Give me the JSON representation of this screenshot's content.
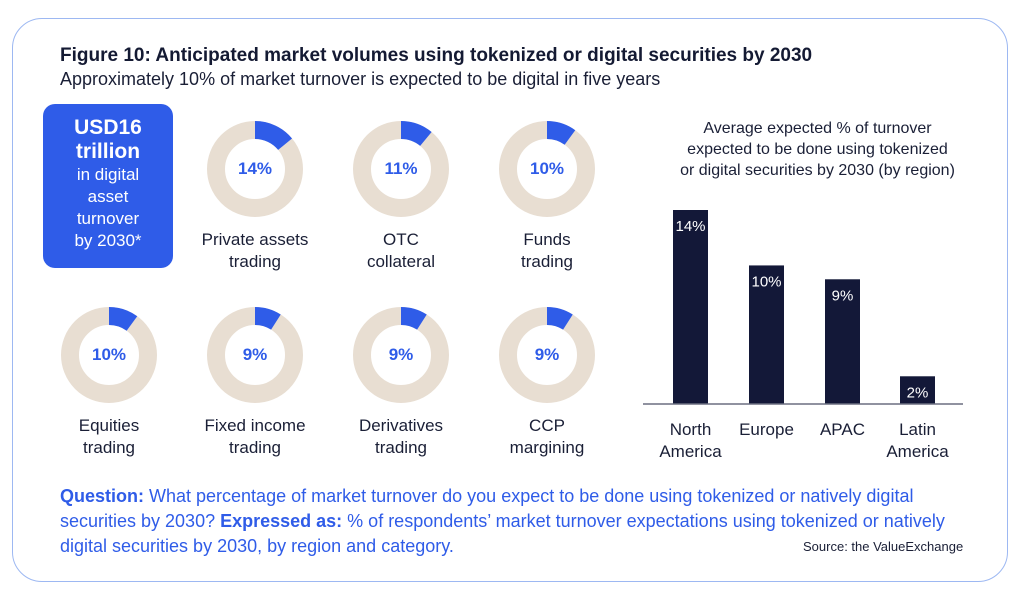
{
  "title": "Figure 10: Anticipated market volumes using tokenized or digital securities by 2030",
  "subtitle": "Approximately 10% of market turnover is expected to be digital in five years",
  "highlight": {
    "line1": "USD16",
    "line2": "trillion",
    "line3": "in digital",
    "line4": "asset",
    "line5": "turnover",
    "line6": "by 2030*"
  },
  "donuts": [
    {
      "value": 14,
      "label": "14%",
      "line1": "Private assets",
      "line2": "trading"
    },
    {
      "value": 11,
      "label": "11%",
      "line1": "OTC",
      "line2": "collateral"
    },
    {
      "value": 10,
      "label": "10%",
      "line1": "Funds",
      "line2": "trading"
    },
    {
      "value": 10,
      "label": "10%",
      "line1": "Equities",
      "line2": "trading"
    },
    {
      "value": 9,
      "label": "9%",
      "line1": "Fixed income",
      "line2": "trading"
    },
    {
      "value": 9,
      "label": "9%",
      "line1": "Derivatives",
      "line2": "trading"
    },
    {
      "value": 9,
      "label": "9%",
      "line1": "CCP",
      "line2": "margining"
    }
  ],
  "colors": {
    "accent": "#2f5ce8",
    "donut_track": "#e8ded2",
    "bar": "#131838",
    "border": "#9db8f2"
  },
  "chart_data": {
    "type": "bar",
    "title_lines": [
      "Average expected % of turnover",
      "expected to be done using tokenized",
      "or digital securities by 2030 (by region)"
    ],
    "categories": [
      [
        "North",
        "America"
      ],
      [
        "Europe"
      ],
      [
        "APAC"
      ],
      [
        "Latin",
        "America"
      ]
    ],
    "values": [
      14,
      10,
      9,
      2
    ],
    "data_labels": [
      "14%",
      "10%",
      "9%",
      "2%"
    ],
    "ylim": [
      0,
      14
    ],
    "grid": false
  },
  "question": {
    "q_label": "Question:",
    "q_text": " What percentage of market turnover do you expect to be done using tokenized or natively digital securities by 2030? ",
    "e_label": "Expressed as:",
    "e_text": " % of respondents’ market turnover expectations using tokenized or natively digital securities by 2030, by region and category."
  },
  "source": "Source: the ValueExchange"
}
